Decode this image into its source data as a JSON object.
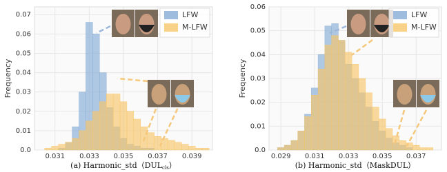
{
  "chart_data": [
    {
      "type": "histogram",
      "xlabel": "(a) Harmonic_std（DUL",
      "xlabel_subscript": "cls",
      "xlabel_end": "）",
      "ylabel": "Frequency",
      "bins": [
        0.03,
        0.0304,
        0.0308,
        0.0312,
        0.0316,
        0.032,
        0.0324,
        0.0328,
        0.0332,
        0.0336,
        0.034,
        0.0344,
        0.0348,
        0.0352,
        0.0356,
        0.036,
        0.0364,
        0.0368,
        0.0372,
        0.0376,
        0.038,
        0.0384,
        0.0388,
        0.0392,
        0.0396,
        0.04
      ],
      "series": [
        {
          "name": "LFW",
          "color": "#86acd6",
          "values": [
            0,
            0,
            0,
            0.001,
            0.004,
            0.012,
            0.03,
            0.066,
            0.06,
            0.04,
            0.022,
            0.012,
            0.006,
            0.003,
            0.002,
            0.001,
            0.001,
            0,
            0,
            0,
            0,
            0,
            0,
            0,
            0
          ]
        },
        {
          "name": "M-LFW",
          "color": "#f8c66a",
          "values": [
            0,
            0.001,
            0.002,
            0.003,
            0.004,
            0.006,
            0.01,
            0.015,
            0.02,
            0.025,
            0.029,
            0.029,
            0.025,
            0.02,
            0.016,
            0.012,
            0.009,
            0.007,
            0.006,
            0.005,
            0.004,
            0.003,
            0.002,
            0.001,
            0.001
          ]
        }
      ],
      "xlim": [
        0.0298,
        0.0402
      ],
      "xticks": [
        0.031,
        0.033,
        0.035,
        0.037,
        0.039
      ],
      "ylim": [
        0,
        0.074
      ],
      "yticks": [
        {
          "value": 0,
          "label": "0.0"
        },
        0.01,
        0.02,
        0.03,
        0.04,
        0.05,
        0.06,
        0.07
      ],
      "grid": true,
      "legend": "upper right"
    },
    {
      "type": "histogram",
      "xlabel": "(b) Harmonic_std（MaskDUL）",
      "ylabel": "Frequency",
      "bins": [
        0.0284,
        0.0288,
        0.0292,
        0.0296,
        0.03,
        0.0304,
        0.0308,
        0.0312,
        0.0316,
        0.032,
        0.0324,
        0.0328,
        0.0332,
        0.0336,
        0.034,
        0.0344,
        0.0348,
        0.0352,
        0.0356,
        0.036,
        0.0364,
        0.0368,
        0.0372,
        0.0376,
        0.038,
        0.0384
      ],
      "series": [
        {
          "name": "LFW",
          "color": "#86acd6",
          "values": [
            0,
            0.001,
            0.002,
            0.004,
            0.008,
            0.015,
            0.026,
            0.04,
            0.052,
            0.053,
            0.046,
            0.036,
            0.03,
            0.024,
            0.018,
            0.012,
            0.008,
            0.005,
            0.003,
            0.002,
            0.001,
            0,
            0,
            0,
            0
          ]
        },
        {
          "name": "M-LFW",
          "color": "#f8c66a",
          "values": [
            0,
            0.001,
            0.002,
            0.004,
            0.008,
            0.014,
            0.023,
            0.034,
            0.044,
            0.048,
            0.046,
            0.041,
            0.036,
            0.03,
            0.024,
            0.018,
            0.013,
            0.009,
            0.006,
            0.004,
            0.003,
            0.002,
            0.001,
            0.001,
            0
          ]
        }
      ],
      "xlim": [
        0.0283,
        0.0385
      ],
      "xticks": [
        0.029,
        0.031,
        0.033,
        0.035,
        0.037
      ],
      "ylim": [
        0,
        0.06
      ],
      "yticks": [
        {
          "value": 0,
          "label": "0.0"
        },
        0.01,
        0.02,
        0.03,
        0.04,
        0.05,
        0.06
      ],
      "grid": true,
      "legend": "upper right"
    }
  ]
}
